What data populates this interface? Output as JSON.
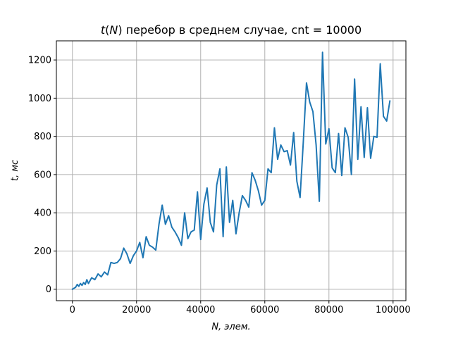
{
  "chart_data": {
    "type": "line",
    "title": "t(N) перебор в среднем случае, cnt = 10000",
    "title_parts": {
      "italic_t": "t",
      "open_paren": "(",
      "italic_N": "N",
      "rest": ") перебор в среднем случае, cnt = 10000"
    },
    "xlabel": "N, элем.",
    "ylabel": "t, мс",
    "xlim": [
      -5000,
      104000
    ],
    "ylim": [
      -60,
      1300
    ],
    "x_ticks": [
      0,
      20000,
      40000,
      60000,
      80000,
      100000
    ],
    "x_tick_labels": [
      "0",
      "20000",
      "40000",
      "60000",
      "80000",
      "100000"
    ],
    "y_ticks": [
      0,
      200,
      400,
      600,
      800,
      1000,
      1200
    ],
    "y_tick_labels": [
      "0",
      "200",
      "400",
      "600",
      "800",
      "1000",
      "1200"
    ],
    "grid": true,
    "series_color": "#1f77b4",
    "series": [
      {
        "x": [
          0,
          1000,
          1500,
          2000,
          2500,
          3000,
          3500,
          4000,
          4500,
          5000,
          6000,
          7000,
          8000,
          9000,
          10000,
          11000,
          12000,
          13000,
          14000,
          15000,
          16000,
          17000,
          18000,
          19000,
          20000,
          21000,
          22000,
          23000,
          24000,
          25000,
          26000,
          27000,
          28000,
          29000,
          30000,
          31000,
          32000,
          33000,
          34000,
          35000,
          36000,
          37000,
          38000,
          39000,
          40000,
          41000,
          42000,
          43000,
          44000,
          45000,
          46000,
          47000,
          48000,
          49000,
          50000,
          51000,
          52000,
          53000,
          54000,
          55000,
          56000,
          57000,
          58000,
          59000,
          60000,
          61000,
          62000,
          63000,
          64000,
          65000,
          66000,
          67000,
          68000,
          69000,
          70000,
          71000,
          72000,
          73000,
          74000,
          75000,
          76000,
          77000,
          78000,
          79000,
          80000,
          81000,
          82000,
          83000,
          84000,
          85000,
          86000,
          87000,
          88000,
          89000,
          90000,
          91000,
          92000,
          93000,
          94000,
          95000,
          96000,
          97000,
          98000,
          99000
        ],
        "y": [
          0,
          10,
          25,
          15,
          30,
          20,
          35,
          25,
          50,
          30,
          60,
          50,
          80,
          65,
          90,
          75,
          140,
          135,
          140,
          160,
          215,
          185,
          135,
          175,
          200,
          245,
          165,
          275,
          230,
          220,
          205,
          340,
          440,
          340,
          385,
          325,
          300,
          270,
          230,
          400,
          265,
          300,
          310,
          510,
          260,
          445,
          530,
          350,
          300,
          545,
          630,
          275,
          640,
          350,
          465,
          290,
          400,
          490,
          465,
          430,
          610,
          570,
          515,
          440,
          465,
          630,
          610,
          845,
          680,
          755,
          720,
          725,
          650,
          820,
          565,
          480,
          770,
          1080,
          980,
          930,
          755,
          460,
          1240,
          760,
          840,
          635,
          610,
          815,
          595,
          845,
          795,
          600,
          1100,
          680,
          955,
          690,
          950,
          685,
          800,
          795,
          1180,
          905,
          880,
          985
        ]
      }
    ]
  }
}
